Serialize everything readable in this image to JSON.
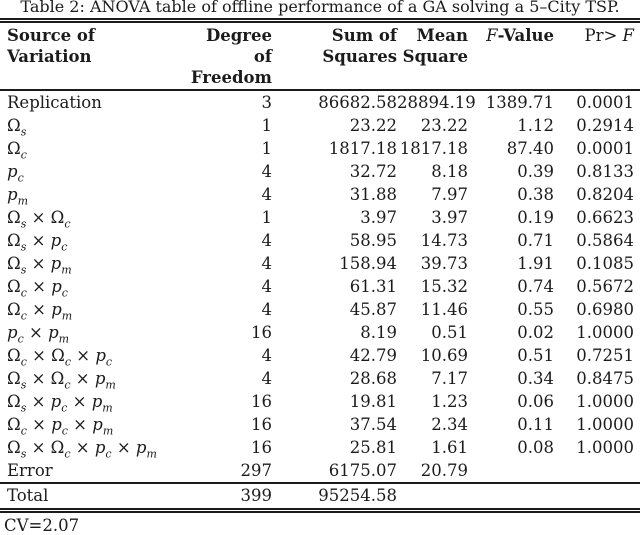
{
  "title": "Table 2: ANOVA table of offline performance of a GA solving a 5–City TSP.",
  "table": {
    "columns": [
      {
        "line1": "Source of",
        "line2": "Variation"
      },
      {
        "line1": "Degree of",
        "line2": "Freedom"
      },
      {
        "line1": "Sum of",
        "line2": "Squares"
      },
      {
        "line1": "Mean",
        "line2": "Square"
      },
      {
        "line1": "*F*-Value",
        "line2": ""
      },
      {
        "line1": "Pr> *F*",
        "line2": ""
      }
    ],
    "rows": [
      {
        "source": "Replication",
        "df": "3",
        "ss": "86682.58",
        "ms": "28894.19",
        "f": "1389.71",
        "pr": "0.0001"
      },
      {
        "source": "Ω_s",
        "df": "1",
        "ss": "23.22",
        "ms": "23.22",
        "f": "1.12",
        "pr": "0.2914"
      },
      {
        "source": "Ω_c",
        "df": "1",
        "ss": "1817.18",
        "ms": "1817.18",
        "f": "87.40",
        "pr": "0.0001"
      },
      {
        "source": "*p*_c",
        "df": "4",
        "ss": "32.72",
        "ms": "8.18",
        "f": "0.39",
        "pr": "0.8133"
      },
      {
        "source": "*p*_m",
        "df": "4",
        "ss": "31.88",
        "ms": "7.97",
        "f": "0.38",
        "pr": "0.8204"
      },
      {
        "source": "Ω_s × Ω_c",
        "df": "1",
        "ss": "3.97",
        "ms": "3.97",
        "f": "0.19",
        "pr": "0.6623"
      },
      {
        "source": "Ω_s × *p*_c",
        "df": "4",
        "ss": "58.95",
        "ms": "14.73",
        "f": "0.71",
        "pr": "0.5864"
      },
      {
        "source": "Ω_s × *p*_m",
        "df": "4",
        "ss": "158.94",
        "ms": "39.73",
        "f": "1.91",
        "pr": "0.1085"
      },
      {
        "source": "Ω_c × *p*_c",
        "df": "4",
        "ss": "61.31",
        "ms": "15.32",
        "f": "0.74",
        "pr": "0.5672"
      },
      {
        "source": "Ω_c × *p*_m",
        "df": "4",
        "ss": "45.87",
        "ms": "11.46",
        "f": "0.55",
        "pr": "0.6980"
      },
      {
        "source": "*p*_c × *p*_m",
        "df": "16",
        "ss": "8.19",
        "ms": "0.51",
        "f": "0.02",
        "pr": "1.0000"
      },
      {
        "source": "Ω_c × Ω_c × *p*_c",
        "df": "4",
        "ss": "42.79",
        "ms": "10.69",
        "f": "0.51",
        "pr": "0.7251"
      },
      {
        "source": "Ω_s × Ω_c × *p*_m",
        "df": "4",
        "ss": "28.68",
        "ms": "7.17",
        "f": "0.34",
        "pr": "0.8475"
      },
      {
        "source": "Ω_s × *p*_c × *p*_m",
        "df": "16",
        "ss": "19.81",
        "ms": "1.23",
        "f": "0.06",
        "pr": "1.0000"
      },
      {
        "source": "Ω_c × *p*_c × *p*_m",
        "df": "16",
        "ss": "37.54",
        "ms": "2.34",
        "f": "0.11",
        "pr": "1.0000"
      },
      {
        "source": "Ω_s × Ω_c × *p*_c × *p*_m",
        "df": "16",
        "ss": "25.81",
        "ms": "1.61",
        "f": "0.08",
        "pr": "1.0000"
      },
      {
        "source": "Error",
        "df": "297",
        "ss": "6175.07",
        "ms": "20.79",
        "f": "",
        "pr": ""
      }
    ],
    "total": {
      "source": "Total",
      "df": "399",
      "ss": "95254.58",
      "ms": "",
      "f": "",
      "pr": ""
    }
  },
  "footer": "CV=2.07"
}
